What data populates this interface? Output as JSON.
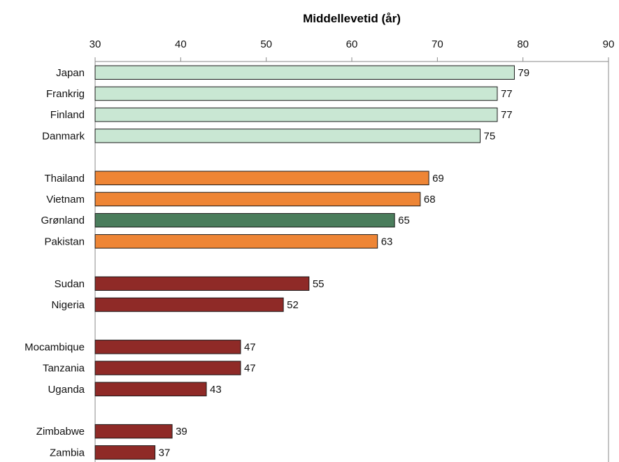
{
  "chart_data": {
    "type": "bar",
    "orientation": "horizontal",
    "title": "Middellevetid (år)",
    "xlim": [
      30,
      90
    ],
    "xticks": [
      30,
      40,
      50,
      60,
      70,
      80,
      90
    ],
    "axis_position": "top",
    "grid": false,
    "legend": "none",
    "categories": [
      "Japan",
      "Frankrig",
      "Finland",
      "Danmark",
      "Thailand",
      "Vietnam",
      "Grønland",
      "Pakistan",
      "Sudan",
      "Nigeria",
      "Mocambique",
      "Tanzania",
      "Uganda",
      "Zimbabwe",
      "Zambia"
    ],
    "values": [
      79,
      77,
      77,
      75,
      69,
      68,
      65,
      63,
      55,
      52,
      47,
      47,
      43,
      39,
      37
    ],
    "groups": [
      [
        "Japan",
        "Frankrig",
        "Finland",
        "Danmark"
      ],
      [
        "Thailand",
        "Vietnam",
        "Grønland",
        "Pakistan"
      ],
      [
        "Sudan",
        "Nigeria"
      ],
      [
        "Mocambique",
        "Tanzania",
        "Uganda"
      ],
      [
        "Zimbabwe",
        "Zambia"
      ]
    ],
    "bar_colors": [
      "#c9e7d3",
      "#c9e7d3",
      "#c9e7d3",
      "#c9e7d3",
      "#ee8535",
      "#ee8535",
      "#4a7d5c",
      "#ee8535",
      "#8f2a27",
      "#8f2a27",
      "#8f2a27",
      "#8f2a27",
      "#8f2a27",
      "#8f2a27",
      "#8f2a27"
    ]
  }
}
